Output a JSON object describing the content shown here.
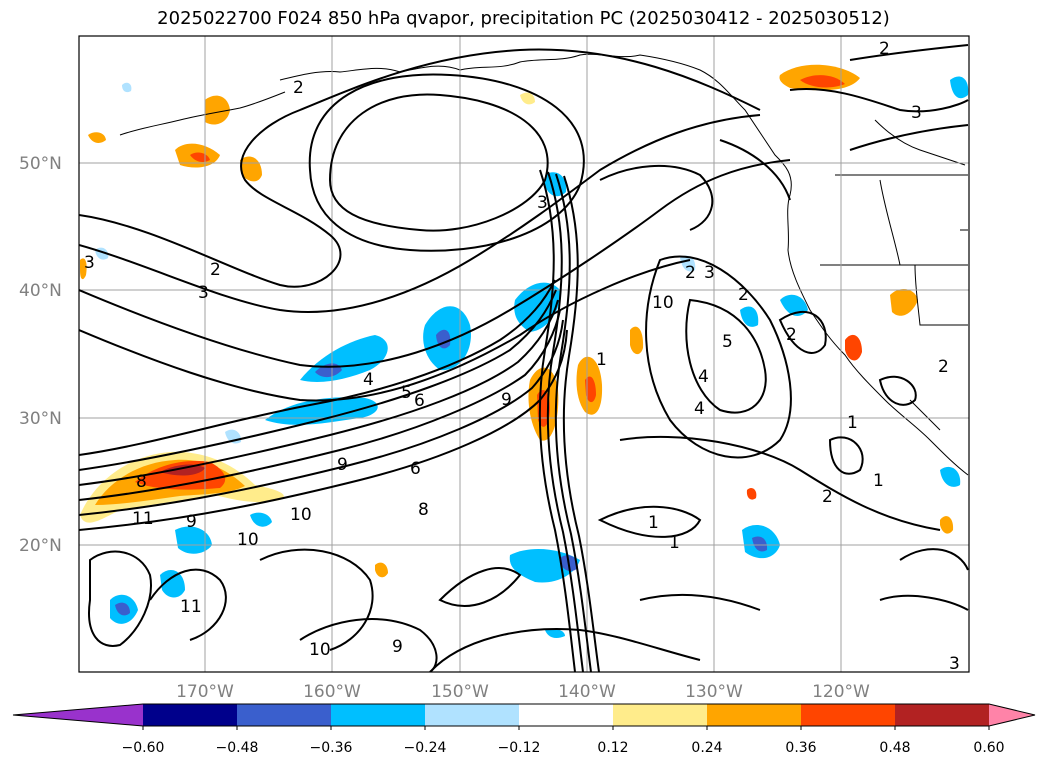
{
  "title": "2025022700 F024 850 hPa qvapor, precipitation PC (2025030412 - 2025030512)",
  "lon_labels": [
    "170°W",
    "160°W",
    "150°W",
    "140°W",
    "130°W",
    "120°W"
  ],
  "lat_labels": [
    "50°N",
    "40°N",
    "30°N",
    "20°N"
  ],
  "colorbar": {
    "levels": [
      "−0.60",
      "−0.48",
      "−0.36",
      "−0.24",
      "−0.12",
      "0.12",
      "0.24",
      "0.36",
      "0.48",
      "0.60"
    ],
    "colors": [
      "#9932cc",
      "#00008b",
      "#3a5fcd",
      "#00bfff",
      "#b0e2ff",
      "#ffffff",
      "#ffec8b",
      "#ffa500",
      "#ff4500",
      "#b22222",
      "#ff83a8"
    ]
  },
  "contour_labels": [
    "2",
    "3",
    "2",
    "3",
    "4",
    "5",
    "6",
    "9",
    "8",
    "11",
    "9",
    "10",
    "6",
    "8",
    "9",
    "10",
    "3",
    "1",
    "10",
    "2",
    "3",
    "5",
    "4",
    "4",
    "2",
    "1",
    "1",
    "2",
    "2",
    "1",
    "1",
    "3",
    "2",
    "3",
    "2",
    "11",
    "10",
    "9"
  ]
}
